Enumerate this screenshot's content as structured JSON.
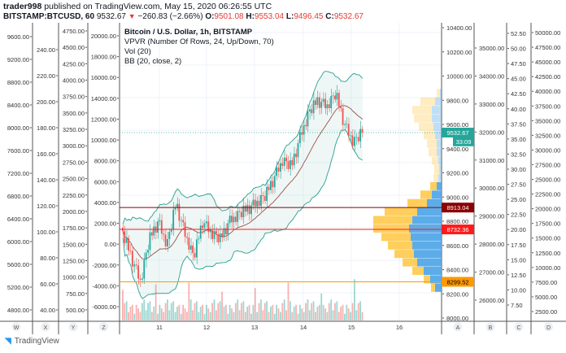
{
  "header": {
    "user": "trader998",
    "published": "published on TradingView.com, May 15, 2020 06:26:55 UTC",
    "symbol": "BITSTAMP:BTCUSD, 60",
    "price": "9532.67",
    "change": "−260.83 (−2.66%)",
    "o_label": "O:",
    "o": "9501.08",
    "h_label": "H:",
    "h": "9553.04",
    "l_label": "L:",
    "l": "9496.45",
    "c_label": "C:",
    "c": "9532.67"
  },
  "legend": {
    "title": "Bitcoin / U.S. Dollar, 1h, BITSTAMP",
    "vpvr": "VPVR (Number Of Rows, 24, Up/Down, 70)",
    "vol": "Vol (20)",
    "bb": "BB (20, close, 2)"
  },
  "axes": {
    "W": {
      "label": "W",
      "ticks": [
        "9600.00",
        "9200.00",
        "8800.00",
        "8400.00",
        "8000.00",
        "7600.00",
        "7200.00",
        "6800.00",
        "6400.00",
        "6000.00",
        "5600.00",
        "5200.00",
        "4800.00"
      ]
    },
    "X": {
      "label": "X",
      "ticks": [
        "240.00",
        "220.00",
        "200.00",
        "180.00",
        "160.00",
        "140.00",
        "120.00",
        "100.00",
        "80.00",
        "60.00",
        "40.00"
      ]
    },
    "Y": {
      "label": "Y",
      "ticks": [
        "4750.00",
        "4500.00",
        "4250.00",
        "4000.00",
        "3750.00",
        "3500.00",
        "3250.00",
        "3000.00",
        "2750.00",
        "2500.00",
        "2250.00",
        "2000.00",
        "1750.00",
        "1500.00",
        "1250.00",
        "1000.00",
        "750.00",
        "500.00"
      ]
    },
    "Z": {
      "label": "Z",
      "ticks": [
        "20000.00",
        "18000.00",
        "16000.00",
        "14000.00",
        "12000.00",
        "10000.00",
        "8000.00",
        "6000.00",
        "4000.00",
        "2000.00",
        "0.00",
        "-2000.00",
        "-4000.00",
        "-6000.00"
      ]
    },
    "A": {
      "label": "A",
      "ticks": [
        "10400.00",
        "10200.00",
        "10000.00",
        "9800.00",
        "9600.00",
        "9400.00",
        "9200.00",
        "9000.00",
        "8800.00",
        "8600.00",
        "8400.00",
        "8200.00",
        "8000.00"
      ]
    },
    "B": {
      "label": "B",
      "ticks": [
        "35000.00",
        "34000.00",
        "33000.00",
        "32000.00",
        "31000.00",
        "30000.00",
        "29000.00",
        "28000.00",
        "27000.00",
        "26000.00"
      ]
    },
    "C": {
      "label": "C",
      "ticks": [
        "52.50",
        "50.00",
        "47.50",
        "45.00",
        "42.50",
        "40.00",
        "37.50",
        "35.00",
        "32.50",
        "30.00",
        "27.50",
        "25.00",
        "22.50",
        "20.00",
        "17.50",
        "15.00",
        "12.50",
        "10.00",
        "7.50"
      ]
    },
    "D": {
      "label": "D",
      "ticks": [
        "50000.00",
        "47500.00",
        "45000.00",
        "42500.00",
        "40000.00",
        "37500.00",
        "35000.00",
        "32500.00",
        "30000.00",
        "27500.00",
        "25000.00",
        "22500.00",
        "20000.00",
        "17500.00",
        "15000.00",
        "12500.00",
        "10000.00",
        "7500.00",
        "5000.00",
        "2500.00"
      ]
    }
  },
  "dates": [
    "11",
    "12",
    "13",
    "14",
    "15",
    "16"
  ],
  "price_labels": [
    {
      "text": "9532.67",
      "value": 9532.67,
      "color": "#26a69a",
      "style": "dotted"
    },
    {
      "text": "33:09",
      "value": 9460,
      "color": "#26a69a",
      "style": "none"
    },
    {
      "text": "8913.04",
      "value": 8913.04,
      "color": "#8b0000",
      "style": "solid"
    },
    {
      "text": "8732.36",
      "value": 8732.36,
      "color": "#ff1a1a",
      "style": "solid"
    },
    {
      "text": "8299.52",
      "value": 8299.52,
      "color": "#ff9800",
      "style": "solid"
    }
  ],
  "chart_data": {
    "type": "candlestick",
    "approximate": true,
    "closes": [
      8700,
      8500,
      8300,
      8650,
      8800,
      8600,
      8950,
      8700,
      8500,
      8800,
      8700,
      8650,
      8800,
      8850,
      8900,
      8950,
      9000,
      9150,
      9300,
      9250,
      9500,
      9700,
      9800,
      9750,
      9850,
      9600,
      9450,
      9532.67
    ],
    "vpvr_rows": [
      {
        "price": 8250,
        "up": 8,
        "down": 5
      },
      {
        "price": 8320,
        "up": 14,
        "down": 8
      },
      {
        "price": 8390,
        "up": 22,
        "down": 14
      },
      {
        "price": 8460,
        "up": 30,
        "down": 18
      },
      {
        "price": 8530,
        "up": 34,
        "down": 24
      },
      {
        "price": 8600,
        "up": 36,
        "down": 30
      },
      {
        "price": 8670,
        "up": 38,
        "down": 36
      },
      {
        "price": 8740,
        "up": 40,
        "down": 44
      },
      {
        "price": 8810,
        "up": 36,
        "down": 48
      },
      {
        "price": 8880,
        "up": 30,
        "down": 40
      },
      {
        "price": 8950,
        "up": 18,
        "down": 24
      },
      {
        "price": 9020,
        "up": 12,
        "down": 14
      },
      {
        "price": 9090,
        "up": 6,
        "down": 8
      },
      {
        "price": 9160,
        "up": 4,
        "down": 6
      },
      {
        "price": 9230,
        "up": 3,
        "down": 6
      },
      {
        "price": 9300,
        "up": 4,
        "down": 8
      },
      {
        "price": 9370,
        "up": 6,
        "down": 10
      },
      {
        "price": 9440,
        "up": 6,
        "down": 12
      },
      {
        "price": 9510,
        "up": 8,
        "down": 14
      },
      {
        "price": 9580,
        "up": 10,
        "down": 18
      },
      {
        "price": 9650,
        "up": 12,
        "down": 22
      },
      {
        "price": 9720,
        "up": 12,
        "down": 24
      },
      {
        "price": 9790,
        "up": 8,
        "down": 18
      },
      {
        "price": 9860,
        "up": 2,
        "down": 4
      }
    ]
  },
  "colors": {
    "up": "#26a69a",
    "down": "#ef5350",
    "bb": "#2a9d8f",
    "basis": "#a0504a",
    "vpvr_up": "#4aa3e8",
    "vpvr_down": "#ffc94a"
  },
  "footer": {
    "brand": "TradingView"
  }
}
